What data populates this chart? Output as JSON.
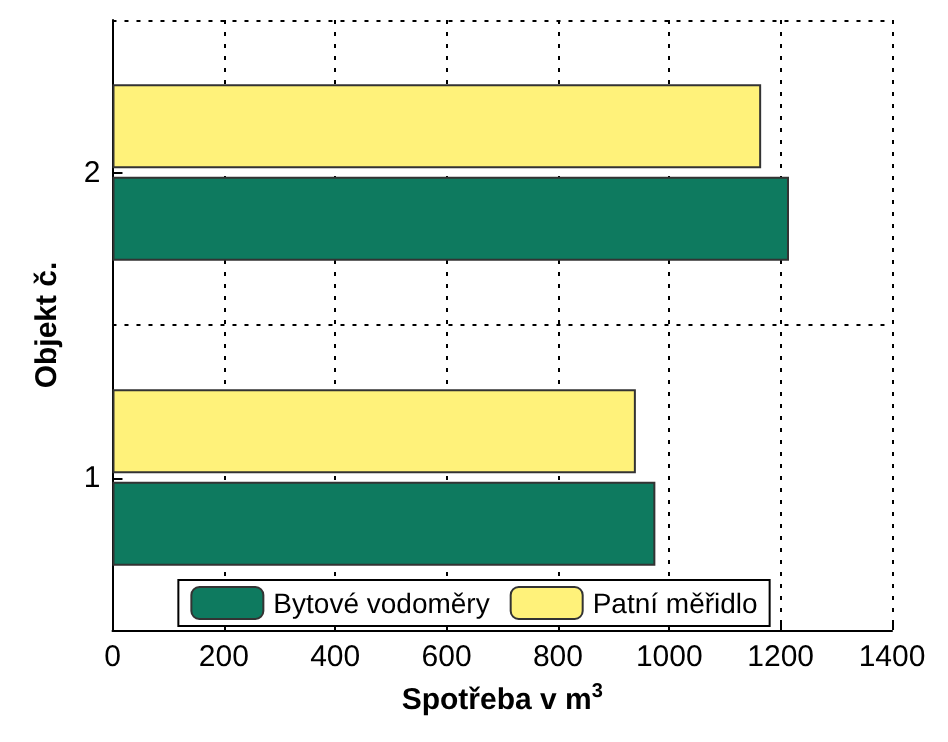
{
  "chart_data": {
    "type": "bar",
    "orientation": "horizontal",
    "categories": [
      "2",
      "1"
    ],
    "xlabel": "Spotřeba v m$^{3}$",
    "ylabel": "Objekt č.",
    "xlim": [
      0,
      1400
    ],
    "xticks": [
      0,
      200,
      400,
      600,
      800,
      1000,
      1200,
      1400
    ],
    "grid": true,
    "legend": "bottom",
    "series": [
      {
        "name": "Bytové vodoměry",
        "color": "#0e7a5f",
        "values": [
          1215,
          975
        ]
      },
      {
        "name": "Patní měřidlo",
        "color": "#fff27a",
        "values": [
          1165,
          940
        ]
      }
    ]
  }
}
